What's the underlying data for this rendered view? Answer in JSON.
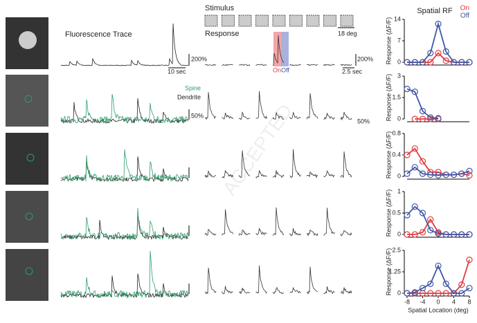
{
  "figure": {
    "fluorescence_title": "Fluorescence Trace",
    "trace_time": "10 sec",
    "trace_amp": "200%",
    "spine": "Spine",
    "dendrite": "Dendrite",
    "trace_amp2": "50%",
    "stimulus": "Stimulus",
    "stim_size": "18 deg",
    "response": "Response",
    "on": "On",
    "off": "Off",
    "resp_time": "2.5 sec",
    "resp_amp": "200%",
    "resp_amp2": "50%",
    "rf_title": "Spatial RF",
    "watermark": "ACCEPTED"
  },
  "chart_data": [
    {
      "type": "line",
      "y_label": "Response (ΔF/F)",
      "x": [
        -8,
        -6,
        -4,
        -2,
        0,
        2,
        4,
        6,
        8
      ],
      "xlim": [
        -8,
        8
      ],
      "ylim": [
        0,
        14
      ],
      "yticks": [
        0,
        7,
        14
      ],
      "series": [
        {
          "name": "On",
          "color": "#e03a3e",
          "values": [
            0,
            0,
            0,
            0,
            3,
            0.5,
            0,
            0,
            0
          ]
        },
        {
          "name": "Off",
          "color": "#3f56a6",
          "values": [
            0,
            0,
            0,
            3,
            12.5,
            3.5,
            0,
            0,
            0
          ]
        }
      ]
    },
    {
      "type": "line",
      "y_label": "Response (ΔF/F)",
      "x": [
        -8,
        -6,
        -4,
        -2,
        0,
        2,
        4,
        6,
        8
      ],
      "xlim": [
        -8,
        8
      ],
      "ylim": [
        0,
        3
      ],
      "yticks": [
        0,
        1.5,
        3
      ],
      "series": [
        {
          "color": "#e03a3e",
          "values": [
            null,
            0,
            0,
            0,
            0,
            null,
            null,
            null,
            null
          ]
        },
        {
          "color": "#3f56a6",
          "values": [
            2.1,
            1.9,
            0.55,
            0.1,
            0.05,
            null,
            null,
            null,
            null
          ]
        }
      ]
    },
    {
      "type": "line",
      "y_label": "Response (ΔF/F)",
      "x": [
        -8,
        -6,
        -4,
        -2,
        0,
        2,
        4,
        6,
        8
      ],
      "xlim": [
        -8,
        8
      ],
      "ylim": [
        0,
        0.8
      ],
      "yticks": [
        0,
        0.4,
        0.8
      ],
      "series": [
        {
          "color": "#e03a3e",
          "values": [
            0.4,
            0.52,
            0.28,
            0.08,
            0.08,
            0.03,
            0.03,
            0.05,
            0.02
          ]
        },
        {
          "color": "#3f56a6",
          "values": [
            0.05,
            0.17,
            0.05,
            0.03,
            0.02,
            0.03,
            0.03,
            0.05,
            0.1
          ]
        }
      ]
    },
    {
      "type": "line",
      "y_label": "Response (ΔF/F)",
      "x": [
        -8,
        -6,
        -4,
        -2,
        0,
        2,
        4,
        6,
        8
      ],
      "xlim": [
        -8,
        8
      ],
      "ylim": [
        0,
        1
      ],
      "yticks": [
        0,
        0.5,
        1
      ],
      "series": [
        {
          "color": "#e03a3e",
          "values": [
            0,
            0,
            0.05,
            0.35,
            0.05,
            0,
            0,
            0,
            0
          ]
        },
        {
          "color": "#3f56a6",
          "values": [
            0.45,
            0.65,
            0.5,
            0.1,
            0.02,
            0,
            0,
            0,
            0
          ]
        }
      ]
    },
    {
      "type": "line",
      "y_label": "Response (ΔF/F)",
      "x_label": "Spatial Location (deg)",
      "x": [
        -8,
        -6,
        -4,
        -2,
        0,
        2,
        4,
        6,
        8
      ],
      "xlim": [
        -8,
        8
      ],
      "ylim": [
        0,
        2.5
      ],
      "yticks": [
        0,
        1.25,
        2.5
      ],
      "xticks": [
        -8,
        -4,
        0,
        4,
        8
      ],
      "series": [
        {
          "color": "#e03a3e",
          "values": [
            0,
            0,
            0,
            0,
            0,
            0,
            0,
            0.5,
            1.95
          ]
        },
        {
          "color": "#3f56a6",
          "values": [
            0,
            0.05,
            0.3,
            0.55,
            1.6,
            0.55,
            0,
            0,
            0.3
          ]
        }
      ]
    }
  ]
}
